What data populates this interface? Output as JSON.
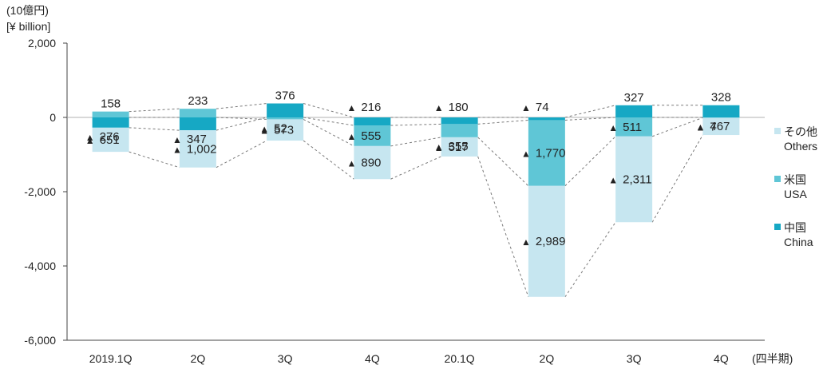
{
  "chart_data": {
    "type": "bar",
    "stacked": true,
    "unit_label_jp": "(10億円)",
    "unit_label_en": "[¥ billion]",
    "period_label": "(四半期)",
    "neg_marker": "▲",
    "categories": [
      "2019.1Q",
      "2Q",
      "3Q",
      "4Q",
      "20.1Q",
      "2Q",
      "3Q",
      "4Q"
    ],
    "ylim": [
      -6000,
      2000
    ],
    "yticks": [
      2000,
      0,
      -2000,
      -4000,
      -6000
    ],
    "ytick_labels": [
      "2,000",
      "0",
      "-2,000",
      "-4,000",
      "-6,000"
    ],
    "grid": false,
    "legend_position": "right",
    "series": [
      {
        "key": "china",
        "name_jp": "中国",
        "name_en": "China",
        "color": "#16a8c4",
        "values": [
          -276,
          -347,
          376,
          -216,
          -180,
          -74,
          327,
          328
        ],
        "labels": [
          "276",
          "347",
          "376",
          "216",
          "180",
          "74",
          "327",
          "328"
        ]
      },
      {
        "key": "usa",
        "name_jp": "米国",
        "name_en": "USA",
        "color": "#5fc6d6",
        "values": [
          158,
          233,
          -52,
          -555,
          -355,
          -1770,
          -511,
          -7
        ],
        "labels": [
          "158",
          "233",
          "52",
          "555",
          "355",
          "1,770",
          "511",
          "7"
        ]
      },
      {
        "key": "others",
        "name_jp": "その他",
        "name_en": "Others",
        "color": "#c6e6f0",
        "values": [
          -651,
          -1002,
          -573,
          -890,
          -517,
          -2989,
          -2311,
          -467
        ],
        "labels": [
          "651",
          "1,002",
          "573",
          "890",
          "517",
          "2,989",
          "2,311",
          "467"
        ]
      }
    ]
  }
}
